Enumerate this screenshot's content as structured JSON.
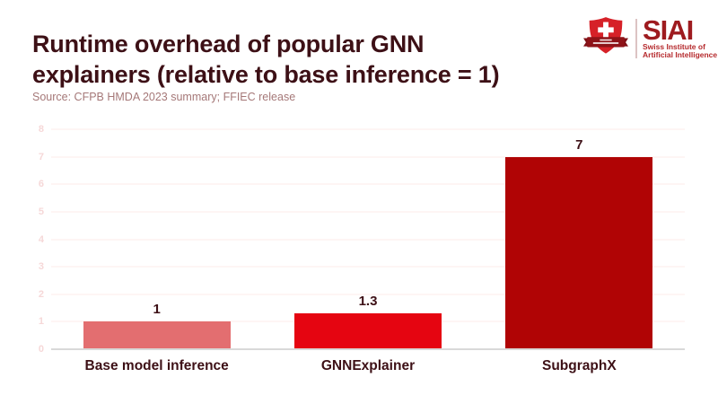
{
  "header": {
    "title_line1": "Runtime overhead of popular GNN",
    "title_line2": "explainers (relative to base inference = 1)",
    "source": "Source: CFPB HMDA 2023 summary; FFIEC release"
  },
  "logo": {
    "acronym": "SIAI",
    "subtitle_line1": "Swiss Institute of",
    "subtitle_line2": "Artificial Intelligence",
    "shield_icon": "swiss-shield-cross-ribbon-icon",
    "colors": {
      "shield_red": "#d62128",
      "ribbon_dark_red": "#7e1016",
      "acronym_red": "#9e1b1f",
      "subtitle_red": "#b5292c"
    }
  },
  "chart_data": {
    "type": "bar",
    "title": "Runtime overhead of popular GNN explainers (relative to base inference = 1)",
    "subtitle": "Source: CFPB HMDA 2023 summary; FFIEC release",
    "categories": [
      "Base model inference",
      "GNNExplainer",
      "SubgraphX"
    ],
    "values": [
      1,
      1.3,
      7
    ],
    "value_labels": [
      "1",
      "1.3",
      "7"
    ],
    "bar_colors": [
      "#e36e70",
      "#e50511",
      "#b00405"
    ],
    "xlabel": "",
    "ylabel": "",
    "ylim": [
      0,
      8
    ],
    "ytick_step": 1,
    "yticks": [
      0,
      1,
      2,
      3,
      4,
      5,
      6,
      7,
      8
    ],
    "grid": "horizontal",
    "legend": "none",
    "styles": {
      "gridline_color": "#fcebe9",
      "baseline_color": "#d9d9d9",
      "tick_label_color": "#f6d8d8",
      "text_color": "#3d1016",
      "source_color": "#a57878",
      "background": "#ffffff"
    }
  }
}
